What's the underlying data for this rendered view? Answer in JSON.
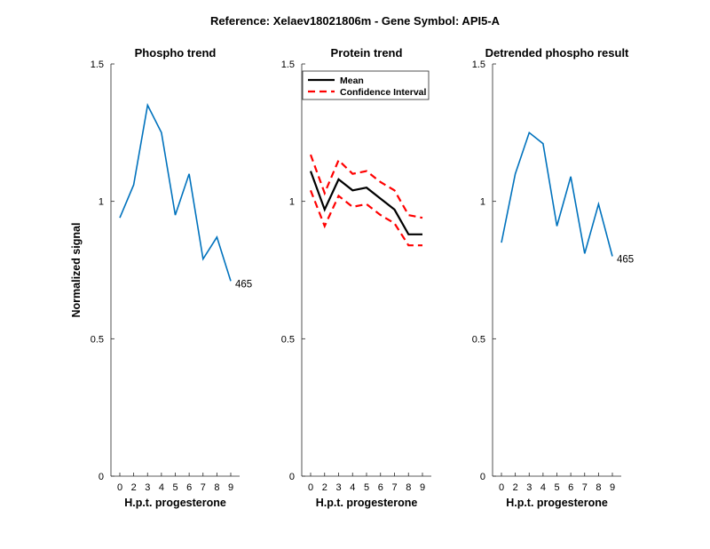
{
  "figure_title": "Reference:  Xelaev18021806m - Gene Symbol:  API5-A",
  "colors": {
    "phospho_line": "#0072BD",
    "mean_line": "#000000",
    "ci_line": "#FF0000",
    "axis": "#262626"
  },
  "chart_data": [
    {
      "type": "line",
      "title": "Phospho trend",
      "xlabel": "H.p.t. progesterone",
      "ylabel": "Normalized signal",
      "categories": [
        "0",
        "2",
        "3",
        "4",
        "5",
        "6",
        "7",
        "8",
        "9"
      ],
      "ylim": [
        0,
        1.5
      ],
      "yticks": [
        "0",
        "0.5",
        "1",
        "1.5"
      ],
      "grid": false,
      "series": [
        {
          "values": [
            0.94,
            1.06,
            1.35,
            1.25,
            0.95,
            1.1,
            0.79,
            0.87,
            0.71
          ]
        }
      ],
      "annotation": "465"
    },
    {
      "type": "line",
      "title": "Protein trend",
      "xlabel": "H.p.t. progesterone",
      "categories": [
        "0",
        "2",
        "3",
        "4",
        "5",
        "6",
        "7",
        "8",
        "9"
      ],
      "ylim": [
        0,
        1.5
      ],
      "yticks": [
        "0",
        "0.5",
        "1",
        "1.5"
      ],
      "grid": false,
      "legend_position": "top-right",
      "series": [
        {
          "name": "Mean",
          "values": [
            1.11,
            0.97,
            1.08,
            1.04,
            1.05,
            1.01,
            0.97,
            0.88,
            0.88
          ]
        },
        {
          "name": "Confidence Interval",
          "values": [
            1.17,
            1.03,
            1.15,
            1.1,
            1.11,
            1.07,
            1.04,
            0.95,
            0.94
          ]
        },
        {
          "values": [
            1.04,
            0.91,
            1.02,
            0.98,
            0.99,
            0.95,
            0.92,
            0.84,
            0.84
          ]
        }
      ]
    },
    {
      "type": "line",
      "title": "Detrended phospho result",
      "xlabel": "H.p.t. progesterone",
      "categories": [
        "0",
        "2",
        "3",
        "4",
        "5",
        "6",
        "7",
        "8",
        "9"
      ],
      "ylim": [
        0,
        1.5
      ],
      "yticks": [
        "0",
        "0.5",
        "1",
        "1.5"
      ],
      "grid": false,
      "series": [
        {
          "values": [
            0.85,
            1.1,
            1.25,
            1.21,
            0.91,
            1.09,
            0.81,
            0.99,
            0.8
          ]
        }
      ],
      "annotation": "465"
    }
  ]
}
